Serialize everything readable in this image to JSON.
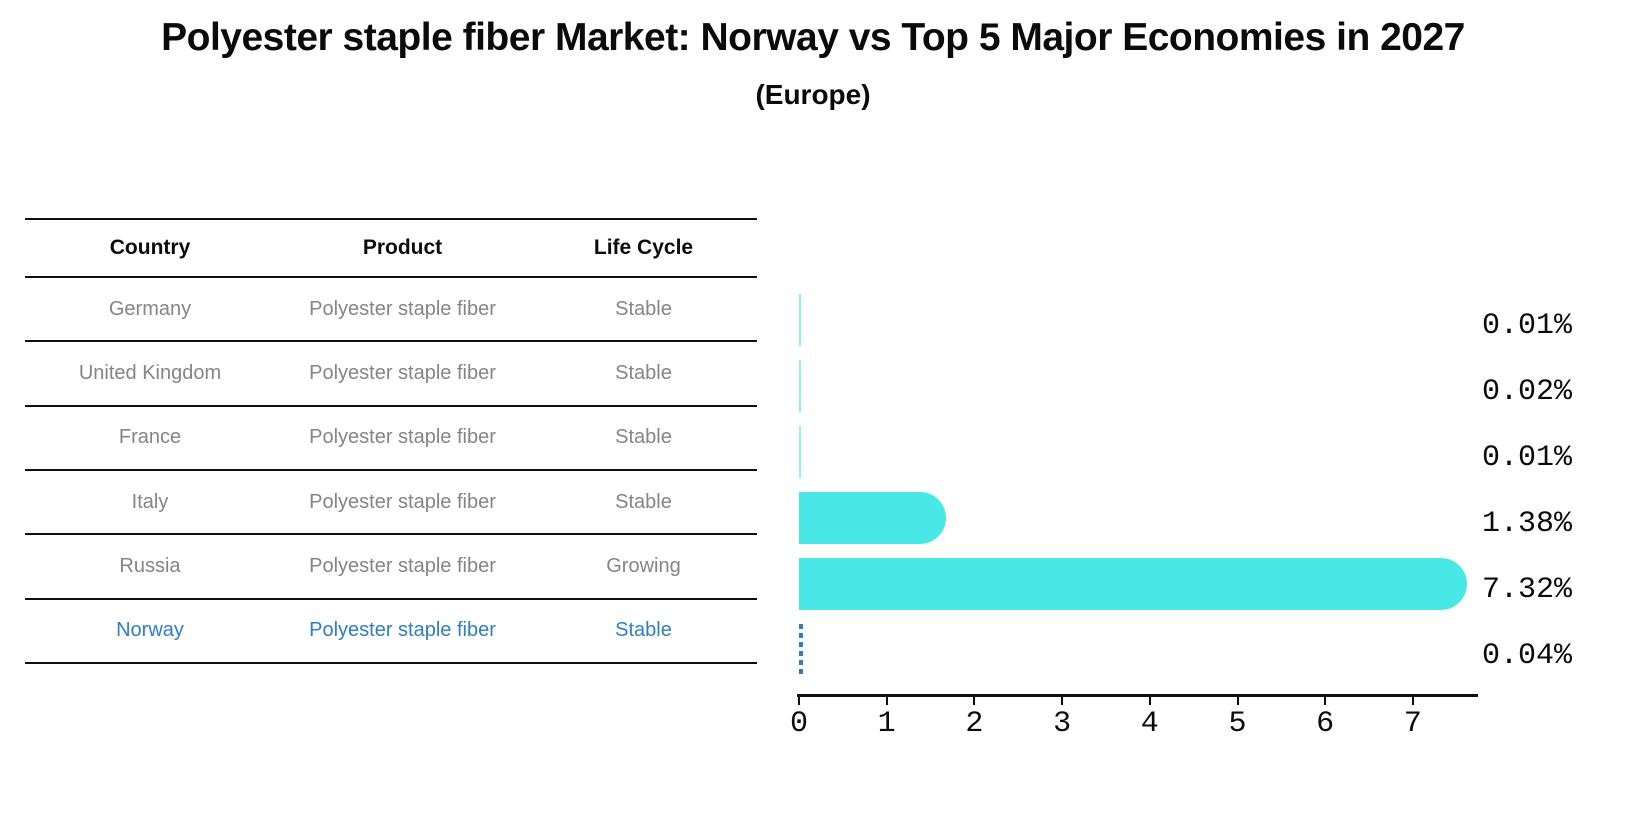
{
  "chart_data": {
    "type": "bar",
    "orientation": "horizontal",
    "title": "Polyester staple fiber Market: Norway vs Top 5 Major Economies in 2027",
    "subtitle": "(Europe)",
    "categories": [
      "Germany",
      "United Kingdom",
      "France",
      "Italy",
      "Russia",
      "Norway"
    ],
    "values": [
      0.01,
      0.02,
      0.01,
      1.38,
      7.32,
      0.04
    ],
    "value_labels": [
      "0.01%",
      "0.02%",
      "0.01%",
      "1.38%",
      "7.32%",
      "0.04%"
    ],
    "x_ticks": [
      "0",
      "1",
      "2",
      "3",
      "4",
      "5",
      "6",
      "7"
    ],
    "xlim": [
      0,
      7.7
    ],
    "grid": false,
    "legend": false,
    "bar_color": "#49e8e6",
    "highlight_country": "Norway",
    "highlight_color": "#2d7dc0",
    "highlight_style": "dashed-outline"
  },
  "table": {
    "headers": [
      "Country",
      "Product",
      "Life Cycle"
    ],
    "rows": [
      {
        "country": "Germany",
        "product": "Polyester staple fiber",
        "life_cycle": "Stable",
        "highlighted": false
      },
      {
        "country": "United Kingdom",
        "product": "Polyester staple fiber",
        "life_cycle": "Stable",
        "highlighted": false
      },
      {
        "country": "France",
        "product": "Polyester staple fiber",
        "life_cycle": "Stable",
        "highlighted": false
      },
      {
        "country": "Italy",
        "product": "Polyester staple fiber",
        "life_cycle": "Stable",
        "highlighted": false
      },
      {
        "country": "Russia",
        "product": "Polyester staple fiber",
        "life_cycle": "Growing",
        "highlighted": false
      },
      {
        "country": "Norway",
        "product": "Polyester staple fiber",
        "life_cycle": "Stable",
        "highlighted": true
      }
    ]
  },
  "colors": {
    "text_gray": "#858585",
    "line_black": "#101010",
    "bar_cyan": "#49e8e6",
    "norway_blue": "#2f7ec4"
  }
}
